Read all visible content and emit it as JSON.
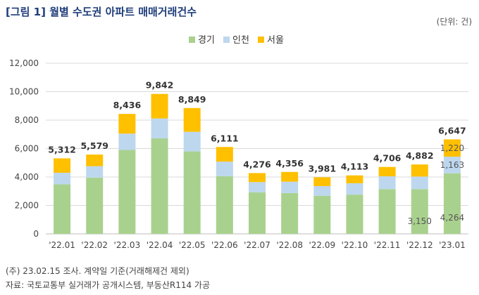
{
  "header": {
    "title": "[그림 1] 월별 수도권 아파트 매매거래건수",
    "unit": "(단위: 건)"
  },
  "footer": {
    "note": "(주) 23.02.15 조사. 계약일 기준(거래해제건 제외)",
    "source": "자료: 국토교통부 실거래가 공개시스템, 부동산R114 가공"
  },
  "chart_data": {
    "type": "bar",
    "stacked": true,
    "categories": [
      "'22.01",
      "'22.02",
      "'22.03",
      "'22.04",
      "'22.05",
      "'22.06",
      "'22.07",
      "'22.08",
      "'22.09",
      "'22.10",
      "'22.11",
      "'22.12",
      "'23.01"
    ],
    "series": [
      {
        "name": "경기",
        "color": "#a9d18e",
        "values": [
          3480,
          3960,
          5900,
          6720,
          5800,
          4060,
          2920,
          2870,
          2680,
          2760,
          3150,
          3150,
          4264
        ]
      },
      {
        "name": "인천",
        "color": "#bdd7ee",
        "values": [
          820,
          800,
          1150,
          1400,
          1380,
          1020,
          720,
          800,
          680,
          800,
          900,
          880,
          1163
        ]
      },
      {
        "name": "서울",
        "color": "#ffc000",
        "values": [
          1012,
          819,
          1386,
          1722,
          1669,
          1031,
          636,
          686,
          621,
          553,
          656,
          852,
          1220
        ]
      }
    ],
    "totals": [
      "5,312",
      "5,579",
      "8,436",
      "9,842",
      "8,849",
      "6,111",
      "4,276",
      "4,356",
      "3,981",
      "4,113",
      "4,706",
      "4,882",
      "6,647"
    ],
    "segment_labels": [
      {
        "category_index": 11,
        "series_index": 0,
        "text": "3,150"
      },
      {
        "category_index": 12,
        "series_index": 0,
        "text": "4,264"
      },
      {
        "category_index": 12,
        "series_index": 1,
        "text": "1,163"
      },
      {
        "category_index": 12,
        "series_index": 2,
        "text": "1,220"
      }
    ],
    "ylim": [
      0,
      12000
    ],
    "yticks": [
      0,
      2000,
      4000,
      6000,
      8000,
      10000,
      12000
    ],
    "ytick_labels": [
      "0",
      "2,000",
      "4,000",
      "6,000",
      "8,000",
      "10,000",
      "12,000"
    ],
    "grid": true,
    "legend_position": "top-center"
  }
}
